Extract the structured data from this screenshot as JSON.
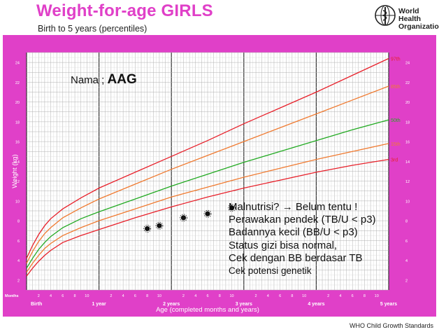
{
  "header": {
    "title": "Weight-for-age GIRLS",
    "subtitle": "Birth to 5 years (percentiles)",
    "org_line1": "World Health",
    "org_line2": "Organization"
  },
  "footer": "WHO Child Growth Standards",
  "nama": {
    "label": "Nama ;",
    "value": "AAG"
  },
  "annotation": [
    "Malnutrisi? → Belum tentu !",
    "Perawakan pendek (TB/U < p3)",
    "Badannya kecil (BB/U < p3)",
    "Status gizi bisa normal,",
    "Cek dengan BB berdasar TB",
    "Cek potensi genetik"
  ],
  "colors": {
    "frame": "#e040c8",
    "p97": "#e8202a",
    "p85": "#f07a30",
    "p50": "#22aa22",
    "p15": "#f07a30",
    "p3": "#e8202a",
    "grid": "#b0b0b0",
    "points": "#111111"
  },
  "chart_data": {
    "type": "line",
    "title": "Weight-for-age GIRLS",
    "subtitle": "Birth to 5 years (percentiles)",
    "xlabel": "Age (completed months and years)",
    "ylabel": "Weight (kg)",
    "x_unit": "months",
    "xlim": [
      0,
      60
    ],
    "ylim": [
      1,
      25
    ],
    "y_ticks": [
      2,
      4,
      6,
      8,
      10,
      12,
      14,
      16,
      18,
      20,
      22,
      24
    ],
    "year_labels": [
      {
        "month": 0,
        "label": "Birth"
      },
      {
        "month": 12,
        "label": "1 year"
      },
      {
        "month": 24,
        "label": "2 years"
      },
      {
        "month": 36,
        "label": "3 years"
      },
      {
        "month": 48,
        "label": "4 years"
      },
      {
        "month": 60,
        "label": "5 years"
      }
    ],
    "month_tick_labels": [
      "2",
      "4",
      "6",
      "8",
      "10",
      "2",
      "4",
      "6",
      "8",
      "10",
      "2",
      "4",
      "6",
      "8",
      "10",
      "2",
      "4",
      "6",
      "8",
      "10",
      "2",
      "4",
      "6",
      "8",
      "10"
    ],
    "months_label": "Months",
    "grid": true,
    "x": [
      0,
      1,
      2,
      3,
      4,
      6,
      9,
      12,
      18,
      24,
      30,
      36,
      42,
      48,
      54,
      60
    ],
    "series": [
      {
        "name": "97th",
        "values": [
          4.2,
          5.5,
          6.6,
          7.5,
          8.2,
          9.2,
          10.3,
          11.3,
          12.9,
          14.5,
          16.1,
          17.8,
          19.4,
          21.0,
          22.7,
          24.4
        ]
      },
      {
        "name": "85th",
        "values": [
          3.7,
          4.9,
          5.9,
          6.7,
          7.3,
          8.3,
          9.3,
          10.2,
          11.7,
          13.2,
          14.6,
          16.0,
          17.4,
          18.8,
          20.2,
          21.6
        ]
      },
      {
        "name": "50th",
        "values": [
          3.2,
          4.2,
          5.1,
          5.8,
          6.4,
          7.3,
          8.2,
          8.9,
          10.2,
          11.5,
          12.7,
          13.9,
          15.0,
          16.1,
          17.2,
          18.2
        ]
      },
      {
        "name": "15th",
        "values": [
          2.8,
          3.7,
          4.5,
          5.2,
          5.7,
          6.5,
          7.3,
          8.0,
          9.2,
          10.4,
          11.4,
          12.4,
          13.3,
          14.2,
          15.0,
          15.8
        ]
      },
      {
        "name": "3rd",
        "values": [
          2.4,
          3.2,
          3.9,
          4.5,
          5.0,
          5.8,
          6.5,
          7.1,
          8.3,
          9.4,
          10.4,
          11.3,
          12.1,
          12.9,
          13.6,
          14.2
        ]
      }
    ],
    "patient_points": {
      "x": [
        20,
        22,
        26,
        30,
        34
      ],
      "y": [
        7.2,
        7.5,
        8.3,
        8.7,
        9.3
      ]
    }
  }
}
